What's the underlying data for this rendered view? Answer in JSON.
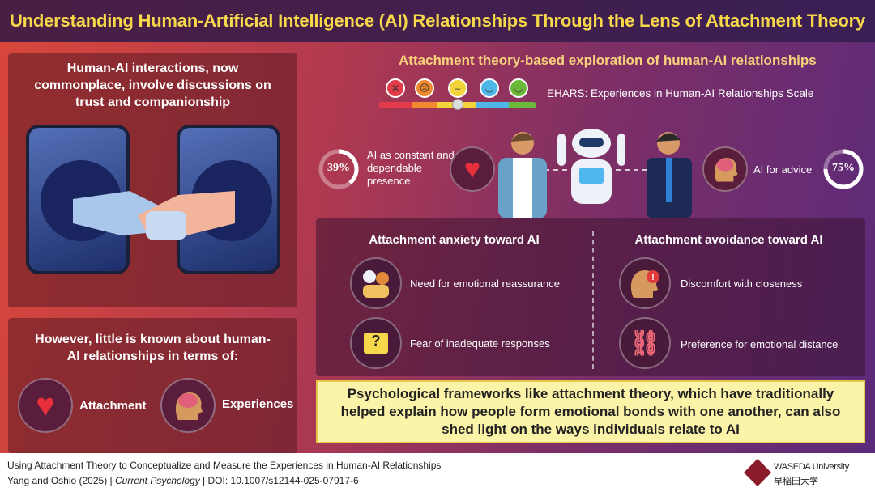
{
  "title": "Understanding Human-Artificial Intelligence (AI) Relationships Through the Lens of Attachment Theory",
  "left_top": {
    "text": "Human-AI interactions, now commonplace, involve discussions on trust and companionship"
  },
  "left_bottom": {
    "text": "However, little is known about human-AI relationships in terms of:",
    "items": [
      {
        "label": "Attachment",
        "icon": "heart-icon"
      },
      {
        "label": "Experiences",
        "icon": "brain-head-icon"
      }
    ]
  },
  "right": {
    "subtitle": "Attachment theory-based exploration of human-AI relationships",
    "scale_label": "EHARS: Experiences in Human-AI Relationships Scale",
    "scale_colors": [
      "#e23b4a",
      "#f08a2e",
      "#f2d43a",
      "#4fb7e8",
      "#6cb83a"
    ],
    "stat_left": {
      "percent": 39,
      "label": "AI as constant and dependable presence"
    },
    "stat_right": {
      "percent": 75,
      "label": "AI for advice"
    },
    "anxiety": {
      "heading": "Attachment anxiety toward AI",
      "items": [
        "Need for emotional reassurance",
        "Fear of inadequate responses"
      ]
    },
    "avoidance": {
      "heading": "Attachment avoidance toward AI",
      "items": [
        "Discomfort with closeness",
        "Preference for emotional distance"
      ]
    },
    "conclusion": "Psychological frameworks like attachment theory, which have traditionally helped explain how people form emotional bonds with one another, can also shed light on the ways individuals relate to AI"
  },
  "footer": {
    "paper_title": "Using Attachment Theory to Conceptualize and Measure the Experiences in Human-AI Relationships",
    "authors": "Yang and Oshio (2025)",
    "journal": "Current Psychology",
    "doi": "DOI: 10.1007/s12144-025-07917-6",
    "logo_en": "WASEDA University",
    "logo_jp": "早稲田大学"
  }
}
